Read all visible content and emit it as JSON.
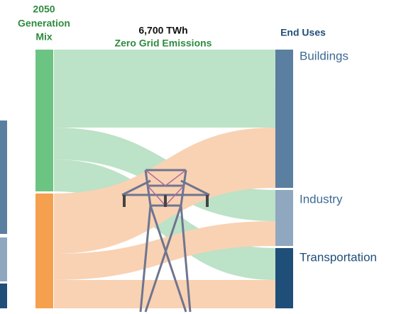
{
  "left_header": {
    "lines": [
      "2050",
      "Generation",
      "Mix"
    ]
  },
  "center_header": {
    "total": "6,700 TWh",
    "subtitle": "Zero Grid Emissions"
  },
  "right_header": {
    "title": "End Uses"
  },
  "end_uses": {
    "labels": [
      "Buildings",
      "Industry",
      "Transportation"
    ]
  }
}
